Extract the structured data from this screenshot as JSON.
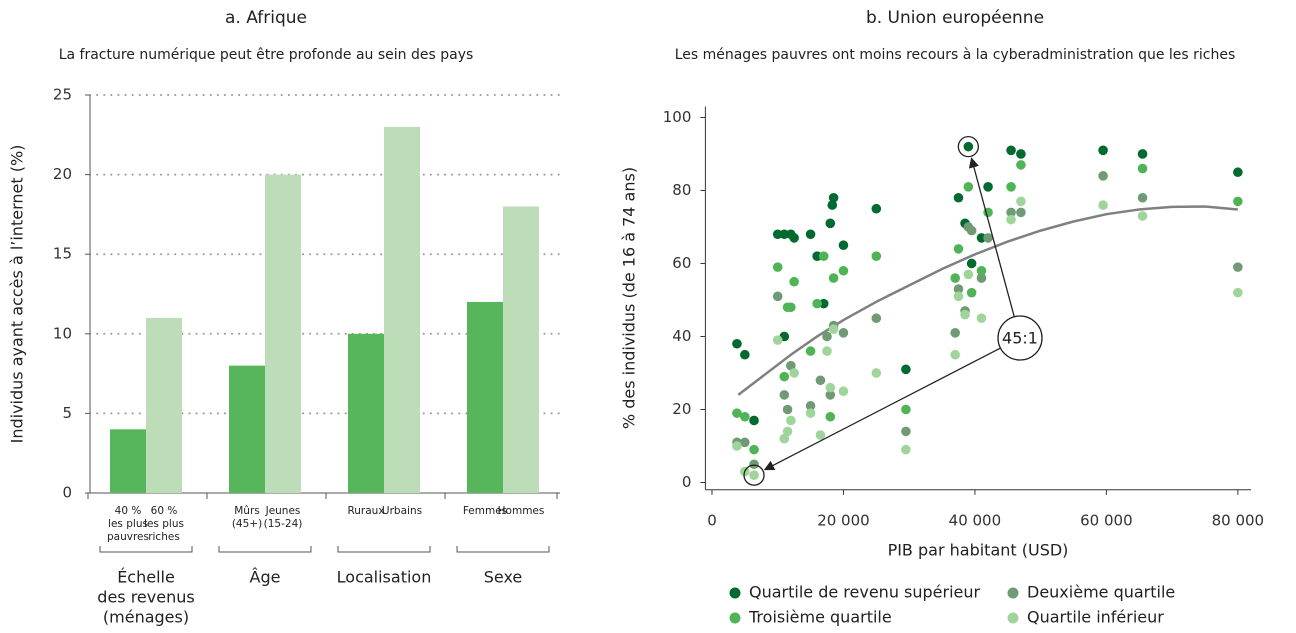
{
  "chart_data": [
    {
      "type": "bar",
      "title": "a. Afrique",
      "subtitle": "La fracture numérique peut être profonde au sein des pays",
      "ylabel": "Individus ayant accès à l’internet (%)",
      "categories": [
        [
          "40 %",
          "les plus",
          "pauvres"
        ],
        [
          "60 %",
          "les plus",
          "riches"
        ],
        [
          "Mûrs",
          "(45+)"
        ],
        [
          "Jeunes",
          "(15-24)"
        ],
        [
          "Ruraux"
        ],
        [
          "Urbains"
        ],
        [
          "Femmes"
        ],
        [
          "Hommes"
        ]
      ],
      "groups": [
        [
          "Échelle",
          "des revenus",
          "(ménages)"
        ],
        [
          "Âge"
        ],
        [
          "Localisation"
        ],
        [
          "Sexe"
        ]
      ],
      "values": [
        4,
        11,
        8,
        20,
        10,
        23,
        12,
        18
      ],
      "colors": [
        "#57b55b",
        "#bddcb8"
      ],
      "ylim": [
        0,
        25
      ],
      "yticks": [
        0,
        5,
        10,
        15,
        20,
        25
      ],
      "grid": true
    },
    {
      "type": "scatter",
      "title": "b. Union européenne",
      "subtitle": "Les ménages pauvres ont moins recours à la cyberadministration que les riches",
      "xlabel": "PIB par habitant (USD)",
      "ylabel": "% des individus (de 16 à 74 ans)",
      "annotation": "45:1",
      "xlim": [
        -1000,
        82000
      ],
      "xticks": [
        0,
        {
          "value": 20000,
          "label": "20 000"
        },
        {
          "value": 40000,
          "label": "40 000"
        },
        {
          "value": 60000,
          "label": "60 000"
        },
        {
          "value": 80000,
          "label": "80 000"
        }
      ],
      "ylim": [
        -2,
        103
      ],
      "yticks": [
        0,
        20,
        40,
        60,
        80,
        100
      ],
      "series": [
        {
          "name": "Quartile de revenu supérieur",
          "color": "#006a31",
          "x": [
            3800,
            5000,
            6400,
            10000,
            11000,
            12000,
            12500,
            11000,
            15000,
            16000,
            17000,
            18000,
            18300,
            18500,
            20000,
            25000,
            29500,
            37500,
            39000,
            39500,
            38500,
            41000,
            42000,
            45500,
            47000,
            59500,
            65500,
            80000
          ],
          "values": [
            38,
            35,
            17,
            68,
            68,
            68,
            67,
            40,
            68,
            62,
            49,
            71,
            76,
            78,
            65,
            75,
            31,
            78,
            92,
            60,
            71,
            67,
            81,
            91,
            90,
            91,
            90,
            85
          ]
        },
        {
          "name": "Deuxième quartile",
          "color": "#6f9a74",
          "x": [
            3800,
            5000,
            6400,
            10000,
            11000,
            11500,
            12000,
            15000,
            16500,
            17500,
            18000,
            18500,
            20000,
            25000,
            29500,
            37500,
            37000,
            38500,
            39000,
            39500,
            41000,
            42000,
            45500,
            47000,
            59500,
            65500,
            80000
          ],
          "values": [
            11,
            11,
            5,
            51,
            24,
            20,
            32,
            21,
            28,
            40,
            24,
            43,
            41,
            45,
            14,
            53,
            41,
            47,
            70,
            69,
            56,
            67,
            74,
            74,
            84,
            78,
            59
          ]
        },
        {
          "name": "Troisième quartile",
          "color": "#4fb456",
          "x": [
            3800,
            5000,
            6400,
            10000,
            11000,
            11500,
            12000,
            12500,
            15000,
            16000,
            17000,
            18000,
            18500,
            20000,
            25000,
            29500,
            37500,
            37000,
            39000,
            39500,
            41000,
            42000,
            45500,
            47000,
            65500,
            80000
          ],
          "values": [
            19,
            18,
            9,
            59,
            29,
            48,
            48,
            55,
            36,
            49,
            62,
            18,
            56,
            58,
            62,
            20,
            64,
            56,
            81,
            52,
            58,
            74,
            81,
            87,
            86,
            77
          ]
        },
        {
          "name": "Quartile inférieur",
          "color": "#9fd59a",
          "x": [
            3800,
            5000,
            6400,
            10000,
            11000,
            11500,
            12000,
            12500,
            15000,
            16500,
            17500,
            18000,
            18500,
            20000,
            25000,
            29500,
            37000,
            37500,
            38500,
            39000,
            41000,
            45500,
            47000,
            59500,
            65500,
            80000
          ],
          "values": [
            10,
            3,
            2,
            39,
            12,
            14,
            17,
            30,
            19,
            13,
            36,
            26,
            42,
            25,
            30,
            9,
            35,
            51,
            46,
            57,
            45,
            72,
            77,
            76,
            73,
            52
          ]
        }
      ],
      "trend": {
        "color": "#808080",
        "x": [
          4000,
          8000,
          12000,
          16000,
          20000,
          25000,
          30000,
          35000,
          40000,
          45000,
          50000,
          55000,
          60000,
          65000,
          70000,
          75000,
          80000
        ],
        "values": [
          24,
          29.5,
          35,
          40,
          44.5,
          49.5,
          54,
          58.5,
          62.5,
          66,
          69,
          71.5,
          73.5,
          74.8,
          75.5,
          75.6,
          74.8
        ]
      }
    }
  ]
}
